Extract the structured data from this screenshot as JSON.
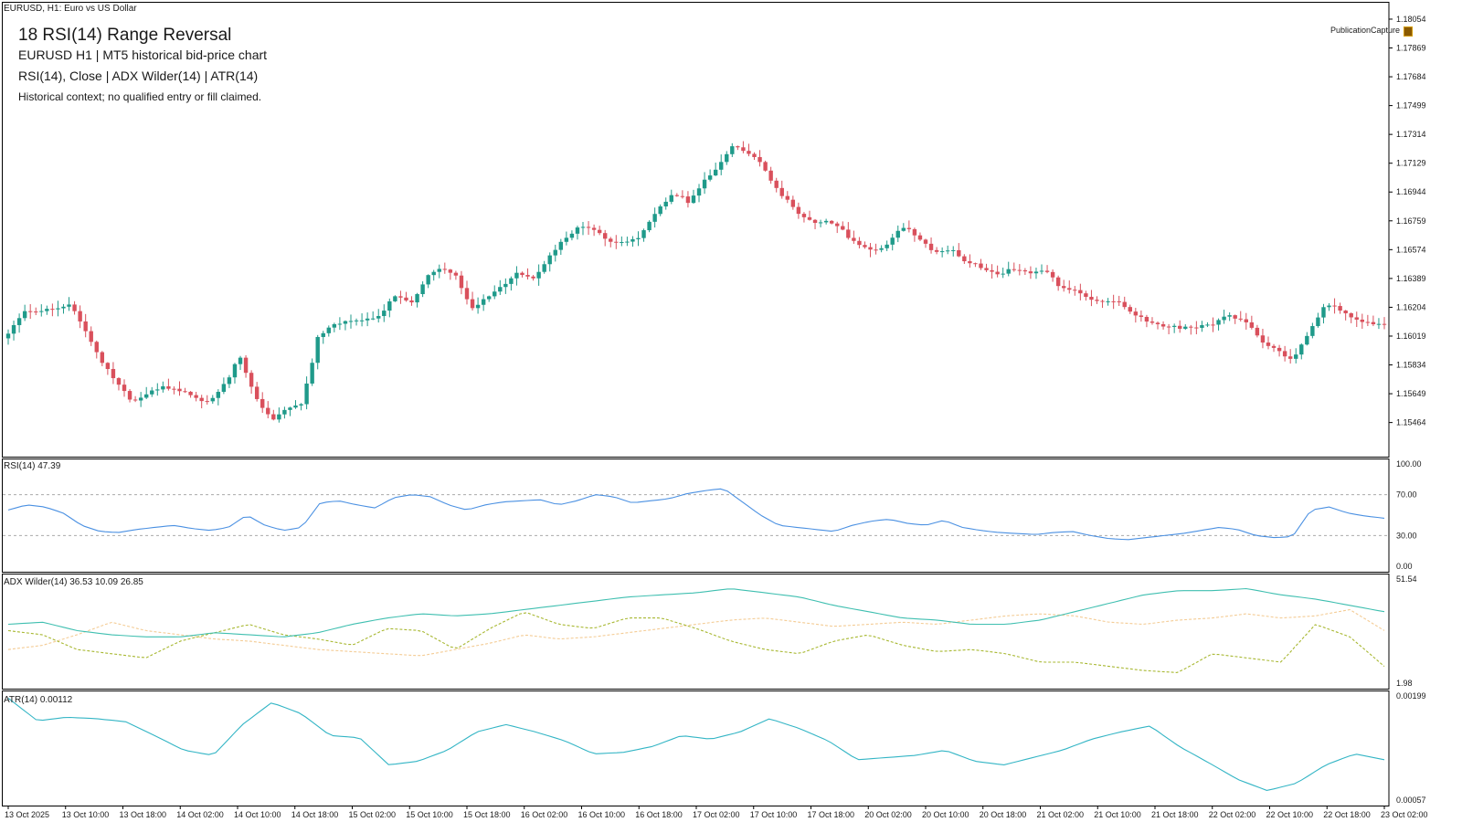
{
  "window": {
    "symbol_caption": "EURUSD, H1:  Euro vs US Dollar",
    "publication_label": "PublicationCapture"
  },
  "overlay": {
    "title": "18  RSI(14) Range Reversal",
    "subtitle": "EURUSD  H1  |  MT5 historical bid-price chart",
    "indicators": "RSI(14), Close | ADX Wilder(14) | ATR(14)",
    "note": "Historical context; no qualified entry or fill claimed."
  },
  "colors": {
    "bull": "#1f9a8a",
    "bear": "#d9505c",
    "rsi_line": "#4a90e2",
    "adx_line": "#3fbfb0",
    "plus_di": "#a8b832",
    "minus_di": "#f4cc95",
    "atr_line": "#33b5c5",
    "axis": "#000000",
    "level": "#aaaaaa"
  },
  "chart_data": [
    {
      "type": "candlestick",
      "title": "EURUSD, H1",
      "y_ticks": [
        "1.18054",
        "1.17869",
        "1.17684",
        "1.17499",
        "1.17314",
        "1.17129",
        "1.16944",
        "1.16759",
        "1.16574",
        "1.16389",
        "1.16204",
        "1.16019",
        "1.15834",
        "1.15649",
        "1.15464"
      ],
      "ylim": [
        1.1528,
        1.1813
      ],
      "x_ticks": [
        "13 Oct 2025",
        "13 Oct 10:00",
        "13 Oct 18:00",
        "14 Oct 02:00",
        "14 Oct 10:00",
        "14 Oct 18:00",
        "15 Oct 02:00",
        "15 Oct 10:00",
        "15 Oct 18:00",
        "16 Oct 02:00",
        "16 Oct 10:00",
        "16 Oct 18:00",
        "17 Oct 02:00",
        "17 Oct 10:00",
        "17 Oct 18:00",
        "20 Oct 02:00",
        "20 Oct 10:00",
        "20 Oct 18:00",
        "21 Oct 02:00",
        "21 Oct 10:00",
        "21 Oct 18:00",
        "22 Oct 02:00",
        "22 Oct 10:00",
        "22 Oct 18:00",
        "23 Oct 02:00"
      ],
      "close_path": [
        1.1602,
        1.1617,
        1.1619,
        1.1621,
        1.1621,
        1.1605,
        1.1585,
        1.1574,
        1.1561,
        1.1566,
        1.1568,
        1.1566,
        1.1563,
        1.1561,
        1.1572,
        1.1588,
        1.1561,
        1.1549,
        1.1556,
        1.156,
        1.16,
        1.1608,
        1.1611,
        1.1614,
        1.1615,
        1.1629,
        1.1621,
        1.1638,
        1.1646,
        1.1641,
        1.162,
        1.1626,
        1.1633,
        1.1642,
        1.164,
        1.1654,
        1.1663,
        1.1672,
        1.1668,
        1.1663,
        1.1664,
        1.1667,
        1.1682,
        1.1692,
        1.1689,
        1.1702,
        1.1713,
        1.1724,
        1.1718,
        1.1708,
        1.1694,
        1.1683,
        1.1673,
        1.1675,
        1.1669,
        1.1662,
        1.1657,
        1.1663,
        1.1672,
        1.1663,
        1.1657,
        1.1659,
        1.165,
        1.1645,
        1.164,
        1.1645,
        1.1643,
        1.1646,
        1.1632,
        1.1631,
        1.1625,
        1.1625,
        1.1624,
        1.1614,
        1.1609,
        1.1606,
        1.1608,
        1.1609,
        1.1611,
        1.1614,
        1.1611,
        1.16,
        1.1594,
        1.1588,
        1.1601,
        1.1619,
        1.1621,
        1.1613,
        1.1611,
        1.1609
      ],
      "last_visible_price": "1.1609"
    },
    {
      "type": "line",
      "label": "RSI(14) 47.39",
      "value": 47.39,
      "y_ticks": [
        "100.00",
        "70.00",
        "30.00",
        "0.00"
      ],
      "levels": [
        70,
        30
      ],
      "ylim": [
        0,
        100
      ],
      "rsi_path": [
        55,
        60,
        58,
        52,
        40,
        34,
        33,
        36,
        38,
        40,
        37,
        35,
        38,
        50,
        40,
        35,
        38,
        62,
        64,
        60,
        57,
        67,
        70,
        68,
        60,
        55,
        60,
        63,
        64,
        65,
        60,
        64,
        70,
        68,
        62,
        64,
        66,
        71,
        74,
        76,
        63,
        50,
        40,
        38,
        36,
        34,
        40,
        44,
        46,
        42,
        40,
        45,
        38,
        35,
        33,
        32,
        31,
        33,
        34,
        30,
        27,
        26,
        28,
        30,
        32,
        35,
        38,
        36,
        30,
        28,
        29,
        55,
        58,
        52,
        49,
        47
      ]
    },
    {
      "type": "line",
      "label": "ADX Wilder(14) 36.53 10.09 26.85",
      "values": {
        "adx": 36.53,
        "plus_di": 10.09,
        "minus_di": 26.85
      },
      "y_ticks": [
        "51.54",
        "1.98"
      ],
      "ylim": [
        1.98,
        51.54
      ],
      "adx_path": [
        30,
        31,
        27,
        25,
        24,
        24,
        26,
        25,
        24,
        26,
        30,
        33,
        35,
        34,
        35,
        37,
        39,
        41,
        43,
        44,
        45,
        47,
        45,
        43,
        39,
        36,
        33,
        32,
        30,
        30,
        32,
        36,
        40,
        44,
        46,
        46,
        47,
        44,
        42,
        39,
        36
      ],
      "plus_di_path": [
        27,
        25,
        18,
        16,
        14,
        22,
        26,
        30,
        25,
        23,
        20,
        28,
        27,
        18,
        28,
        36,
        30,
        28,
        33,
        33,
        28,
        22,
        18,
        16,
        22,
        25,
        20,
        17,
        18,
        16,
        12,
        12,
        10,
        8,
        7,
        16,
        14,
        12,
        30,
        24,
        10
      ],
      "minus_di_path": [
        18,
        20,
        25,
        31,
        27,
        25,
        23,
        22,
        20,
        18,
        17,
        16,
        15,
        18,
        21,
        25,
        23,
        24,
        26,
        28,
        30,
        32,
        33,
        31,
        29,
        30,
        31,
        30,
        32,
        34,
        35,
        34,
        31,
        30,
        32,
        33,
        35,
        33,
        34,
        37,
        27
      ]
    },
    {
      "type": "line",
      "label": "ATR(14) 0.00112",
      "value": 0.00112,
      "y_ticks": [
        "0.00199",
        "0.00057"
      ],
      "ylim": [
        0.00057,
        0.00199
      ],
      "atr_path": [
        0.00196,
        0.00165,
        0.0017,
        0.00168,
        0.00164,
        0.00145,
        0.00125,
        0.00118,
        0.0016,
        0.0019,
        0.00175,
        0.00145,
        0.00142,
        0.00105,
        0.0011,
        0.00125,
        0.0015,
        0.0016,
        0.0015,
        0.00138,
        0.0012,
        0.00122,
        0.0013,
        0.00145,
        0.0014,
        0.0015,
        0.00168,
        0.00155,
        0.00138,
        0.00112,
        0.00115,
        0.00118,
        0.00125,
        0.0011,
        0.00105,
        0.00115,
        0.00125,
        0.0014,
        0.0015,
        0.00158,
        0.0013,
        0.00108,
        0.00085,
        0.0007,
        0.0008,
        0.00105,
        0.0012,
        0.00112
      ]
    }
  ]
}
